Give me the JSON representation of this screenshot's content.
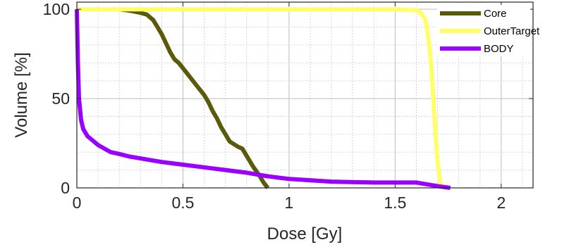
{
  "chart_data": {
    "type": "line",
    "title": "",
    "xlabel": "Dose [Gy]",
    "ylabel": "Volume [%]",
    "xlim": [
      0,
      2.15
    ],
    "ylim": [
      0,
      104
    ],
    "x_ticks": [
      0,
      0.5,
      1,
      1.5,
      2
    ],
    "x_tick_labels": [
      "0",
      "0.5",
      "1",
      "1.5",
      "2"
    ],
    "y_ticks": [
      0,
      50,
      100
    ],
    "y_tick_labels": [
      "0",
      "50",
      "100"
    ],
    "grid": "major and minor",
    "legend_position": "top-right",
    "series": [
      {
        "name": "Core",
        "color": "#5a5a0a",
        "x": [
          0.2,
          0.26,
          0.3,
          0.33,
          0.36,
          0.38,
          0.4,
          0.42,
          0.44,
          0.46,
          0.48,
          0.5,
          0.52,
          0.54,
          0.56,
          0.58,
          0.6,
          0.62,
          0.64,
          0.66,
          0.68,
          0.7,
          0.72,
          0.76,
          0.78,
          0.8,
          0.83,
          0.86,
          0.88,
          0.9
        ],
        "y": [
          100,
          99,
          98,
          97,
          94,
          90,
          86,
          81,
          76,
          72,
          70,
          67,
          64,
          61,
          58,
          55,
          52,
          48,
          43,
          39,
          34,
          30,
          26,
          23,
          22,
          18,
          12,
          7,
          3,
          0
        ]
      },
      {
        "name": "OuterTarget",
        "color": "#ffff66",
        "x": [
          0.0,
          0.5,
          1.0,
          1.5,
          1.6,
          1.62,
          1.64,
          1.65,
          1.66,
          1.67,
          1.68,
          1.69,
          1.7,
          1.71,
          1.72
        ],
        "y": [
          100,
          100,
          100,
          100,
          99.5,
          98,
          95,
          90,
          80,
          68,
          50,
          30,
          15,
          5,
          0
        ]
      },
      {
        "name": "BODY",
        "color": "#9900ff",
        "x": [
          0.0,
          0.005,
          0.01,
          0.02,
          0.03,
          0.05,
          0.07,
          0.1,
          0.13,
          0.16,
          0.2,
          0.25,
          0.3,
          0.35,
          0.4,
          0.5,
          0.6,
          0.7,
          0.8,
          0.9,
          1.0,
          1.2,
          1.4,
          1.6,
          1.65,
          1.7,
          1.76
        ],
        "y": [
          100,
          70,
          50,
          38,
          33,
          29,
          27,
          24,
          22,
          20,
          19,
          17.5,
          16.5,
          15.5,
          14.5,
          13,
          11.5,
          10,
          8.5,
          6.5,
          5,
          3.5,
          3,
          3,
          2,
          1,
          0
        ]
      }
    ]
  }
}
